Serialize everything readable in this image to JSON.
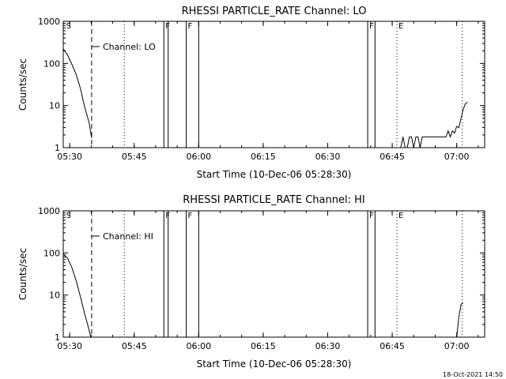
{
  "footer": {
    "timestamp": "18-Oct-2021 14:50"
  },
  "chart_data": [
    {
      "type": "line",
      "title": "RHESSI PARTICLE_RATE Channel: LO",
      "xlabel": "Start Time (10-Dec-06 05:28:30)",
      "ylabel": "Counts/sec",
      "yscale": "log",
      "xlim_minutes": [
        0,
        98
      ],
      "ylim": [
        1,
        1000
      ],
      "x_tick_labels": [
        "05:30",
        "05:45",
        "06:00",
        "06:15",
        "06:30",
        "06:45",
        "07:00"
      ],
      "x_tick_values": [
        1.5,
        16.5,
        31.5,
        46.5,
        61.5,
        76.5,
        91.5
      ],
      "y_tick_labels": [
        "1",
        "10",
        "100",
        "1000"
      ],
      "y_tick_values": [
        1,
        10,
        100,
        1000
      ],
      "legend": {
        "label": "Channel: LO",
        "position": "top-left"
      },
      "series": [
        {
          "name": "Channel: LO",
          "segments": [
            {
              "x": [
                0,
                1,
                2,
                3,
                4,
                5,
                6,
                6.6
              ],
              "y": [
                220,
                160,
                95,
                55,
                25,
                9,
                4,
                1.7
              ]
            },
            {
              "x": [
                78.5,
                79,
                79.5,
                80,
                80.5,
                81,
                81.5,
                82,
                82.5,
                83,
                83.5,
                84,
                85,
                86,
                87,
                88,
                89,
                89.5,
                90,
                90.5,
                91,
                91.5,
                92,
                92.5,
                93,
                93.5,
                94
              ],
              "y": [
                1,
                1.8,
                1,
                1,
                1.8,
                1.8,
                1,
                1.8,
                1.8,
                1,
                1.8,
                1.8,
                1.8,
                1.8,
                1.8,
                1.8,
                1.8,
                2.5,
                1.8,
                2.5,
                2.2,
                3.2,
                3.0,
                5,
                8,
                11,
                12
              ]
            }
          ]
        }
      ],
      "markers": [
        {
          "label": "S",
          "x": 0.3,
          "style": "none"
        },
        {
          "label": "",
          "x": 6.6,
          "style": "dashed"
        },
        {
          "label": "",
          "x": 14.2,
          "style": "dotted"
        },
        {
          "label": "F",
          "x": 23.4,
          "style": "solid"
        },
        {
          "label": "",
          "x": 24.4,
          "style": "solid"
        },
        {
          "label": "F",
          "x": 28.6,
          "style": "solid"
        },
        {
          "label": "",
          "x": 31.5,
          "style": "solid"
        },
        {
          "label": "F",
          "x": 70.8,
          "style": "solid"
        },
        {
          "label": "",
          "x": 72.5,
          "style": "solid"
        },
        {
          "label": "E",
          "x": 77.6,
          "style": "dotted"
        },
        {
          "label": "",
          "x": 92.8,
          "style": "dotted"
        }
      ]
    },
    {
      "type": "line",
      "title": "RHESSI PARTICLE_RATE Channel: HI",
      "xlabel": "Start Time (10-Dec-06 05:28:30)",
      "ylabel": "Counts/sec",
      "yscale": "log",
      "xlim_minutes": [
        0,
        98
      ],
      "ylim": [
        1,
        1000
      ],
      "x_tick_labels": [
        "05:30",
        "05:45",
        "06:00",
        "06:15",
        "06:30",
        "06:45",
        "07:00"
      ],
      "x_tick_values": [
        1.5,
        16.5,
        31.5,
        46.5,
        61.5,
        76.5,
        91.5
      ],
      "y_tick_labels": [
        "1",
        "10",
        "100",
        "1000"
      ],
      "y_tick_values": [
        1,
        10,
        100,
        1000
      ],
      "legend": {
        "label": "Channel: HI",
        "position": "top-left"
      },
      "series": [
        {
          "name": "Channel: HI",
          "segments": [
            {
              "x": [
                0,
                1,
                2,
                3,
                4,
                5,
                5.8,
                6.4
              ],
              "y": [
                95,
                75,
                45,
                22,
                9,
                3.5,
                1.8,
                1
              ]
            },
            {
              "x": [
                91.5,
                92,
                92.5,
                93
              ],
              "y": [
                1,
                3,
                6,
                6.5
              ]
            }
          ]
        }
      ],
      "markers": [
        {
          "label": "S",
          "x": 0.3,
          "style": "none"
        },
        {
          "label": "",
          "x": 6.6,
          "style": "dashed"
        },
        {
          "label": "",
          "x": 14.2,
          "style": "dotted"
        },
        {
          "label": "F",
          "x": 23.4,
          "style": "solid"
        },
        {
          "label": "",
          "x": 24.4,
          "style": "solid"
        },
        {
          "label": "F",
          "x": 28.6,
          "style": "solid"
        },
        {
          "label": "",
          "x": 31.5,
          "style": "solid"
        },
        {
          "label": "F",
          "x": 70.8,
          "style": "solid"
        },
        {
          "label": "",
          "x": 72.5,
          "style": "solid"
        },
        {
          "label": "E",
          "x": 77.6,
          "style": "dotted"
        },
        {
          "label": "",
          "x": 92.8,
          "style": "dotted"
        }
      ]
    }
  ]
}
